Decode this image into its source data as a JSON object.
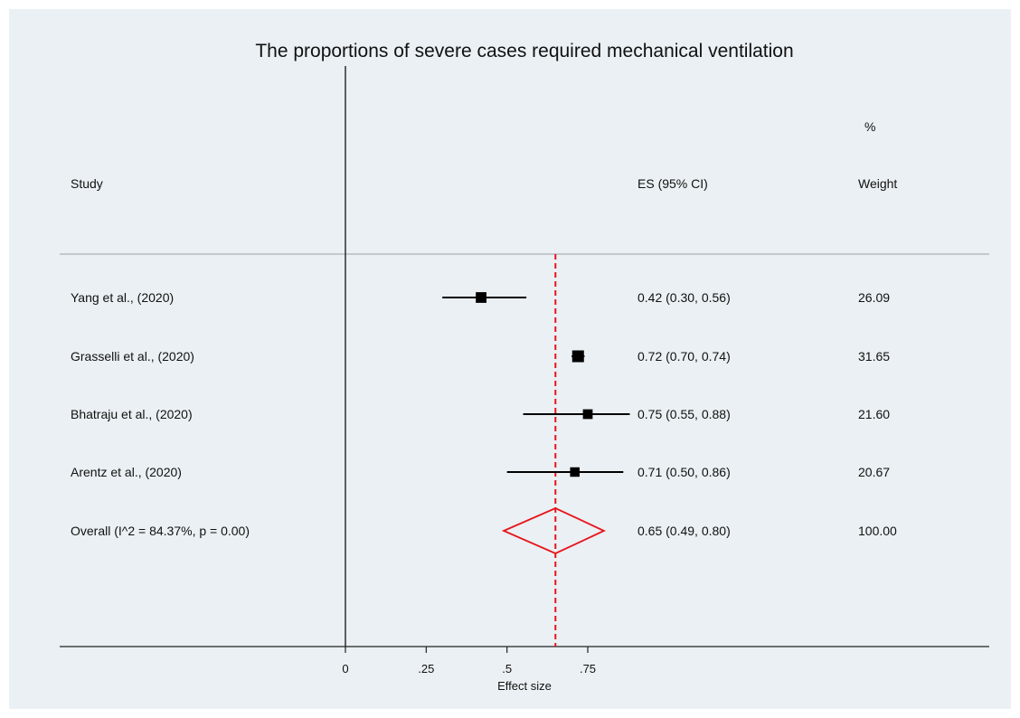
{
  "chart_data": {
    "type": "forest",
    "title": "The proportions of severe cases required mechanical ventilation",
    "xlabel": "Effect size",
    "xlim": [
      0,
      0.75
    ],
    "xticks": [
      "0",
      ".25",
      ".5",
      ".75"
    ],
    "xtick_values": [
      0,
      0.25,
      0.5,
      0.75
    ],
    "headers": {
      "study": "Study",
      "es": "ES (95% CI)",
      "weight_top": "%",
      "weight": "Weight"
    },
    "studies": [
      {
        "label": "Yang et al., (2020)",
        "es": 0.42,
        "lo": 0.3,
        "hi": 0.56,
        "es_text": "0.42 (0.30, 0.56)",
        "weight": 26.09,
        "weight_text": "26.09"
      },
      {
        "label": "Grasselli et al., (2020)",
        "es": 0.72,
        "lo": 0.7,
        "hi": 0.74,
        "es_text": "0.72 (0.70, 0.74)",
        "weight": 31.65,
        "weight_text": "31.65"
      },
      {
        "label": "Bhatraju et al., (2020)",
        "es": 0.75,
        "lo": 0.55,
        "hi": 0.88,
        "es_text": "0.75 (0.55, 0.88)",
        "weight": 21.6,
        "weight_text": "21.60"
      },
      {
        "label": "Arentz et al., (2020)",
        "es": 0.71,
        "lo": 0.5,
        "hi": 0.86,
        "es_text": "0.71 (0.50, 0.86)",
        "weight": 20.67,
        "weight_text": "20.67"
      }
    ],
    "overall": {
      "label": "Overall  (I^2 = 84.37%, p = 0.00)",
      "es": 0.65,
      "lo": 0.49,
      "hi": 0.8,
      "es_text": "0.65 (0.49, 0.80)",
      "weight_text": "100.00"
    },
    "colors": {
      "overall": "#e8141c",
      "markers": "#000000",
      "background": "#eaf0f3"
    }
  }
}
